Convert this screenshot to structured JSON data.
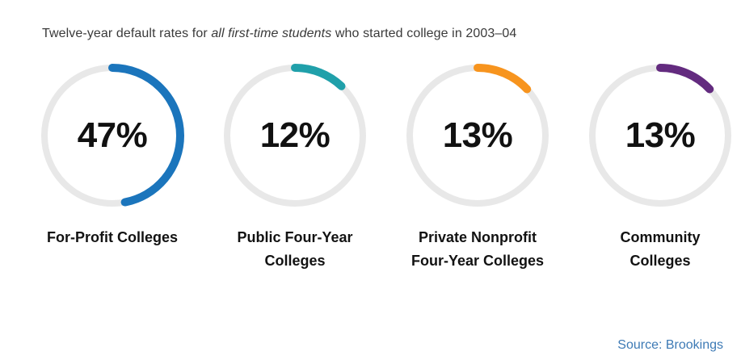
{
  "title": {
    "prefix": "Twelve-year default rates for ",
    "emphasis": "all first-time students",
    "suffix": " who started college in 2003–04"
  },
  "source": "Source: Brookings",
  "chart_data": {
    "type": "pie",
    "variant": "donut-gauge-multiples",
    "title": "Twelve-year default rates for all first-time students who started college in 2003–04",
    "categories": [
      "For-Profit Colleges",
      "Public Four-Year Colleges",
      "Private Nonprofit Four-Year Colleges",
      "Community Colleges"
    ],
    "values": [
      47,
      12,
      13,
      13
    ],
    "unit": "%",
    "label_lines": [
      [
        "For-Profit Colleges"
      ],
      [
        "Public Four-Year",
        "Colleges"
      ],
      [
        "Private Nonprofit",
        "Four-Year Colleges"
      ],
      [
        "Community",
        "Colleges"
      ]
    ],
    "colors": [
      "#1b75bc",
      "#20a0aa",
      "#f7941e",
      "#632b7f"
    ],
    "track_color": "#e8e8e8",
    "percent_text_color": "#111111",
    "arc_start": "top",
    "arc_direction": "clockwise",
    "source": "Source: Brookings"
  }
}
